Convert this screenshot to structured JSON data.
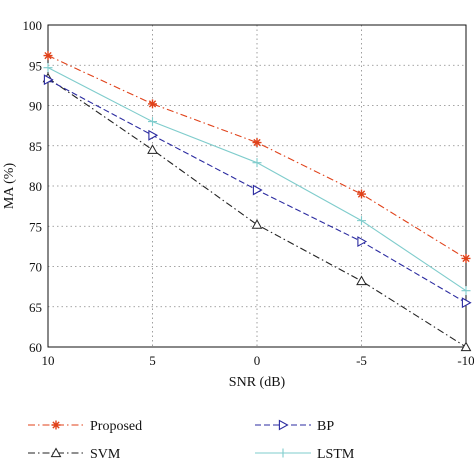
{
  "chart_data": {
    "type": "line",
    "xlabel": "SNR (dB)",
    "ylabel": "MA (%)",
    "x": [
      10,
      5,
      0,
      -5,
      -10
    ],
    "xticks": [
      "10",
      "5",
      "0",
      "-5",
      "-10"
    ],
    "yticks": [
      "60",
      "65",
      "70",
      "75",
      "80",
      "85",
      "90",
      "95",
      "100"
    ],
    "ylim": [
      60,
      100
    ],
    "xlim": [
      10,
      -10
    ],
    "x_reversed": true,
    "grid": true,
    "grid_style": "dotted",
    "legend_placement": "bottom",
    "series": [
      {
        "name": "Proposed",
        "values": [
          96.2,
          90.2,
          85.4,
          79.0,
          71.0
        ],
        "color": "#e0421a",
        "dash": "dash-dot",
        "marker": "star"
      },
      {
        "name": "SVM",
        "values": [
          93.4,
          84.5,
          75.2,
          68.2,
          60.0
        ],
        "color": "#222222",
        "dash": "dash-dot",
        "marker": "triangle-up"
      },
      {
        "name": "BP",
        "values": [
          93.2,
          86.3,
          79.5,
          73.1,
          65.5
        ],
        "color": "#2b2ba0",
        "dash": "dashed",
        "marker": "triangle-right"
      },
      {
        "name": "LSTM",
        "values": [
          94.7,
          88.0,
          82.9,
          75.7,
          67.0
        ],
        "color": "#7fcccc",
        "dash": "solid",
        "marker": "plus"
      }
    ]
  }
}
